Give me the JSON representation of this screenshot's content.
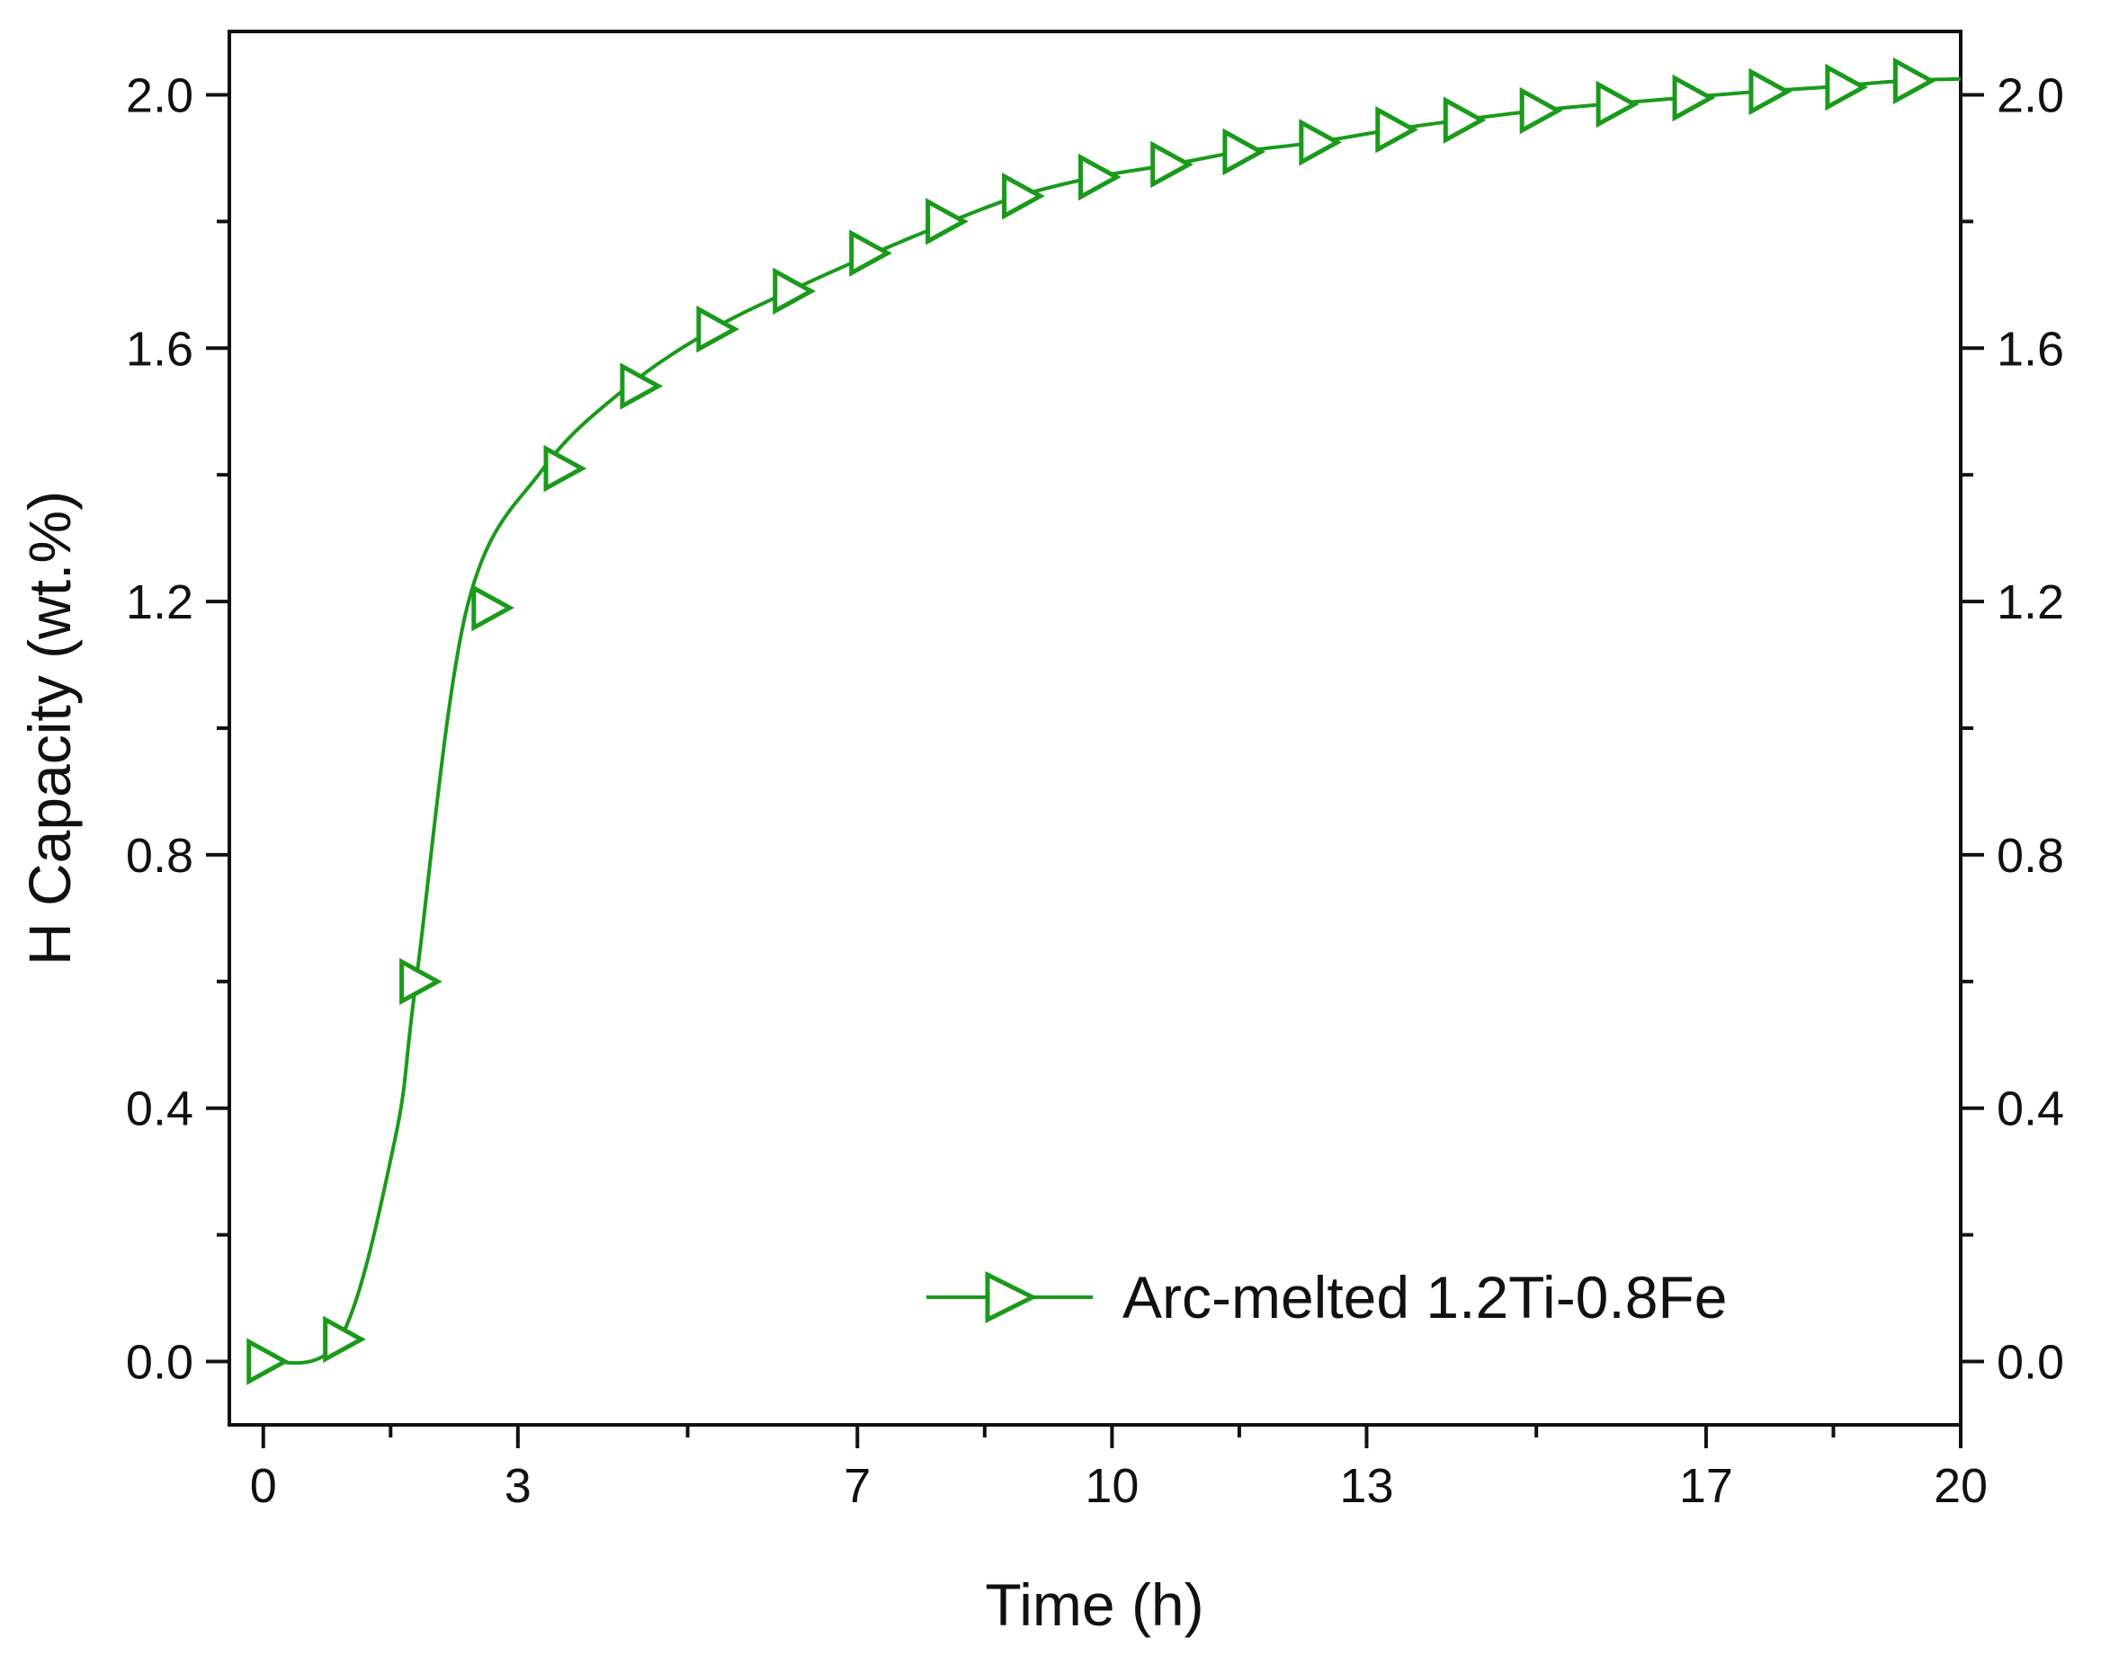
{
  "chart_data": {
    "type": "line",
    "title": "",
    "xlabel": "Time (h)",
    "ylabel": "H Capacity (wt.%)",
    "xlim": [
      -0.4,
      20
    ],
    "ylim": [
      -0.1,
      2.1
    ],
    "xticks": [
      0,
      3,
      7,
      10,
      13,
      17,
      20
    ],
    "xtick_labels": [
      "0",
      "3",
      "7",
      "10",
      "13",
      "17",
      "20"
    ],
    "yticks": [
      0.0,
      0.4,
      0.8,
      1.2,
      1.6,
      2.0
    ],
    "ytick_labels": [
      "0.0",
      "0.4",
      "0.8",
      "1.2",
      "1.6",
      "2.0"
    ],
    "right_ytick_labels": [
      "0.0",
      "0.4",
      "0.8",
      "1.2",
      "1.6",
      "2.0"
    ],
    "grid": false,
    "legend_position": "bottom-right",
    "series": [
      {
        "name": "Arc-melted 1.2Ti-0.8Fe",
        "color": "#1a9a1a",
        "marker": "right-triangle-open",
        "x": [
          0.0,
          0.9,
          1.55,
          1.8,
          2.4,
          3.3,
          4.3,
          5.3,
          6.2,
          7.2,
          8.1,
          8.9,
          9.8,
          10.7,
          11.5,
          12.4,
          13.3,
          14.1,
          15.0,
          15.8,
          16.7,
          17.6,
          18.4,
          19.3,
          20.0
        ],
        "y": [
          0.0,
          0.035,
          0.35,
          0.6,
          1.19,
          1.41,
          1.54,
          1.63,
          1.69,
          1.75,
          1.8,
          1.84,
          1.87,
          1.89,
          1.91,
          1.925,
          1.945,
          1.96,
          1.975,
          1.985,
          1.995,
          2.005,
          2.012,
          2.022,
          2.025
        ],
        "marker_x": [
          0.0,
          0.9,
          1.8,
          2.65,
          3.5,
          4.4,
          5.3,
          6.2,
          7.1,
          8.0,
          8.9,
          9.8,
          10.65,
          11.5,
          12.4,
          13.3,
          14.1,
          15.0,
          15.9,
          16.8,
          17.7,
          18.6,
          19.4
        ],
        "marker_y": [
          0.0,
          0.035,
          0.6,
          1.19,
          1.41,
          1.54,
          1.63,
          1.69,
          1.75,
          1.8,
          1.84,
          1.87,
          1.89,
          1.91,
          1.925,
          1.945,
          1.96,
          1.975,
          1.985,
          1.995,
          2.005,
          2.012,
          2.022
        ]
      }
    ]
  }
}
